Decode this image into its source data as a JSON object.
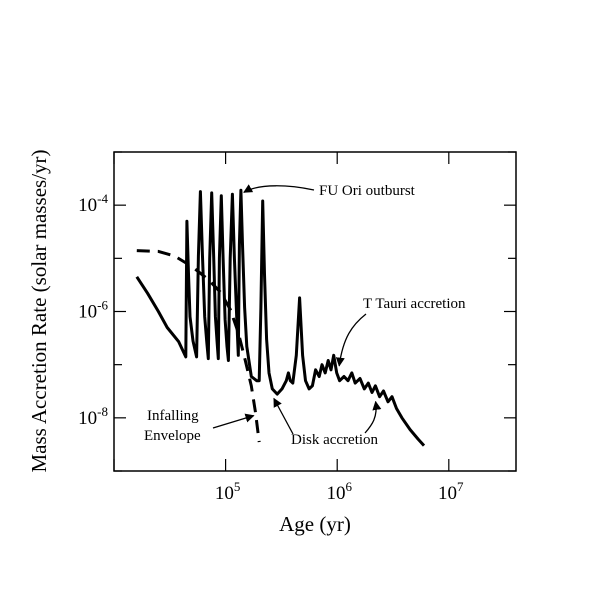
{
  "chart_data": {
    "type": "line",
    "title": "",
    "xlabel": "Age (yr)",
    "ylabel": "Mass  Accretion  Rate  (solar masses/yr)",
    "x_scale": "log",
    "y_scale": "log",
    "xlim": [
      10000,
      40000000
    ],
    "ylim": [
      1e-09,
      0.001
    ],
    "grid": false,
    "x_ticks": [
      {
        "value": 100000,
        "base": "10",
        "exp": "5"
      },
      {
        "value": 1000000,
        "base": "10",
        "exp": "6"
      },
      {
        "value": 10000000,
        "base": "10",
        "exp": "7"
      }
    ],
    "y_ticks": [
      {
        "value": 0.0001,
        "base": "10",
        "exp": "-4"
      },
      {
        "value": 1e-06,
        "base": "10",
        "exp": "-6"
      },
      {
        "value": 1e-08,
        "base": "10",
        "exp": "-8"
      }
    ],
    "series": [
      {
        "name": "Disk accretion",
        "style": "solid",
        "points": [
          [
            16000,
            4.5e-06
          ],
          [
            20000,
            2.2e-06
          ],
          [
            25000,
            1e-06
          ],
          [
            30000,
            5e-07
          ],
          [
            38000,
            2.7e-07
          ],
          [
            44000,
            1.4e-07
          ],
          [
            45000,
            5e-05
          ],
          [
            46500,
            5e-06
          ],
          [
            48000,
            8e-07
          ],
          [
            51000,
            2.8e-07
          ],
          [
            55000,
            1.4e-07
          ],
          [
            57000,
            1.1e-05
          ],
          [
            59500,
            0.00018
          ],
          [
            62000,
            1.2e-05
          ],
          [
            65000,
            8e-07
          ],
          [
            68000,
            2.5e-07
          ],
          [
            70000,
            1.3e-07
          ],
          [
            72000,
            1e-05
          ],
          [
            75000,
            0.00017
          ],
          [
            78000,
            1.2e-05
          ],
          [
            81000,
            8e-07
          ],
          [
            84000,
            2.5e-07
          ],
          [
            86000,
            1.3e-07
          ],
          [
            88000,
            1e-05
          ],
          [
            91500,
            0.00015
          ],
          [
            95000,
            1e-05
          ],
          [
            99000,
            7e-07
          ],
          [
            103000,
            2.2e-07
          ],
          [
            106000,
            1.2e-07
          ],
          [
            110000,
            1e-05
          ],
          [
            115000,
            0.00016
          ],
          [
            120000,
            1e-05
          ],
          [
            126000,
            7e-07
          ],
          [
            130000,
            1.5e-07
          ],
          [
            133000,
            1.8e-05
          ],
          [
            137000,
            0.00019
          ],
          [
            142000,
            1.6e-05
          ],
          [
            148000,
            1.2e-06
          ],
          [
            155000,
            2.2e-07
          ],
          [
            170000,
            6e-08
          ],
          [
            190000,
            5e-08
          ],
          [
            200000,
            5e-08
          ],
          [
            207000,
            1.2e-06
          ],
          [
            215000,
            0.00012
          ],
          [
            223000,
            5e-06
          ],
          [
            233000,
            3e-07
          ],
          [
            245000,
            7e-08
          ],
          [
            262000,
            3.5e-08
          ],
          [
            290000,
            2.8e-08
          ],
          [
            320000,
            3.5e-08
          ],
          [
            350000,
            5e-08
          ],
          [
            365000,
            7e-08
          ],
          [
            380000,
            5e-08
          ],
          [
            400000,
            4.5e-08
          ],
          [
            430000,
            1.5e-07
          ],
          [
            460000,
            1.8e-06
          ],
          [
            490000,
            1.5e-07
          ],
          [
            520000,
            5e-08
          ],
          [
            560000,
            3.5e-08
          ],
          [
            600000,
            4e-08
          ],
          [
            640000,
            8e-08
          ],
          [
            690000,
            6e-08
          ],
          [
            730000,
            1e-07
          ],
          [
            780000,
            7e-08
          ],
          [
            830000,
            1.2e-07
          ],
          [
            880000,
            8e-08
          ],
          [
            930000,
            1.5e-07
          ],
          [
            990000,
            7e-08
          ],
          [
            1050000,
            5e-08
          ],
          [
            1150000,
            6e-08
          ],
          [
            1250000,
            5e-08
          ],
          [
            1350000,
            7e-08
          ],
          [
            1450000,
            4.5e-08
          ],
          [
            1600000,
            5.5e-08
          ],
          [
            1750000,
            3.5e-08
          ],
          [
            1900000,
            4.5e-08
          ],
          [
            2050000,
            3e-08
          ],
          [
            2200000,
            4e-08
          ],
          [
            2400000,
            2.5e-08
          ],
          [
            2600000,
            3.2e-08
          ],
          [
            2850000,
            2e-08
          ],
          [
            3100000,
            2.5e-08
          ],
          [
            3400000,
            1.5e-08
          ],
          [
            3800000,
            1e-08
          ],
          [
            4500000,
            6e-09
          ],
          [
            5300000,
            4e-09
          ],
          [
            6000000,
            3e-09
          ]
        ]
      },
      {
        "name": "Infalling Envelope",
        "style": "dashed",
        "points": [
          [
            16000,
            1.4e-05
          ],
          [
            25000,
            1.35e-05
          ],
          [
            35000,
            1.1e-05
          ],
          [
            50000,
            7e-06
          ],
          [
            70000,
            4e-06
          ],
          [
            90000,
            2.3e-06
          ],
          [
            110000,
            1.1e-06
          ],
          [
            130000,
            4e-07
          ],
          [
            150000,
            1.2e-07
          ],
          [
            170000,
            4e-08
          ],
          [
            185000,
            1.3e-08
          ],
          [
            200000,
            3.5e-09
          ]
        ]
      }
    ],
    "annotations": [
      {
        "text": "FU  Ori  outburst",
        "target": [
          137000,
          0.00019
        ]
      },
      {
        "text": "T  Tauri  accretion",
        "target": [
          1000000,
          8e-08
        ]
      },
      {
        "text": "Disk accretion",
        "target": [
          260000,
          3e-08
        ]
      },
      {
        "text": "Disk accretion",
        "target": [
          2400000,
          2.5e-08
        ]
      },
      {
        "text": "Infalling",
        "target": [
          190000,
          1.2e-08
        ]
      },
      {
        "text": "Envelope",
        "target": null
      }
    ]
  }
}
